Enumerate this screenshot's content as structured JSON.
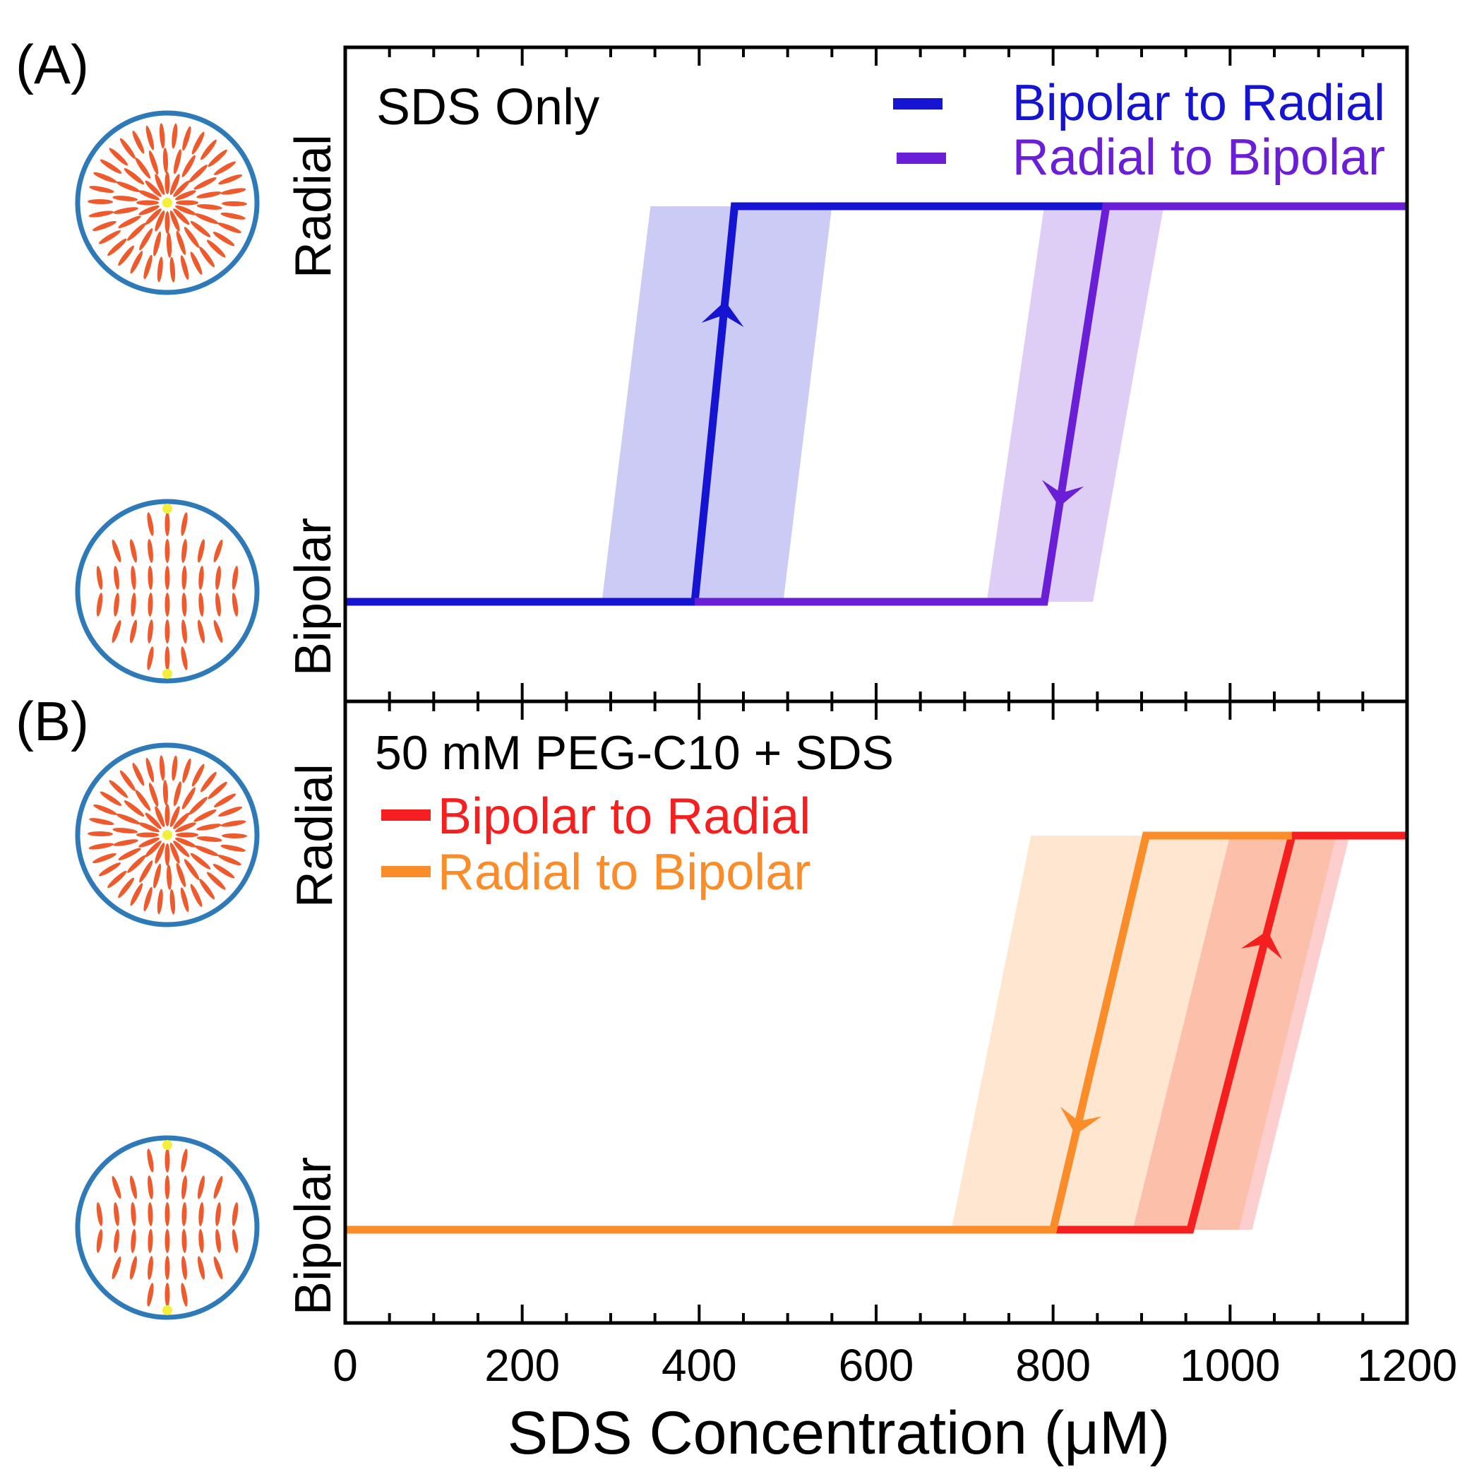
{
  "x_axis": {
    "label": "SDS Concentration (μM)",
    "ticks": [
      "0",
      "200",
      "400",
      "600",
      "800",
      "1000",
      "1200"
    ]
  },
  "y_states": {
    "top": "Radial",
    "bottom": "Bipolar"
  },
  "colors": {
    "blue": "#1414d2",
    "purple": "#6a1ed6",
    "red": "#f51f1f",
    "orange": "#fb8c2a",
    "droplet_border": "#2e7ab8",
    "molecule": "#ee5a2c",
    "defect": "#f4ef3a"
  },
  "chart_data": [
    {
      "type": "line",
      "panel_label": "(A)",
      "annotation": "SDS Only",
      "xlabel": "SDS Concentration (μM)",
      "xlim": [
        0,
        1200
      ],
      "ylim": [
        "Bipolar",
        "Radial"
      ],
      "legend_position": "top-right",
      "series": [
        {
          "name": "Bipolar to Radial",
          "color": "#1414d2",
          "direction": "up",
          "points": [
            [
              0,
              "Bipolar"
            ],
            [
              395,
              "Bipolar"
            ],
            [
              440,
              "Radial"
            ],
            [
              1200,
              "Radial"
            ]
          ],
          "uncertainty_band": {
            "at_bipolar": [
              290,
              495
            ],
            "at_radial": [
              345,
              550
            ]
          }
        },
        {
          "name": "Radial to Bipolar",
          "color": "#6a1ed6",
          "direction": "down",
          "points": [
            [
              395,
              "Bipolar"
            ],
            [
              790,
              "Bipolar"
            ],
            [
              860,
              "Radial"
            ],
            [
              1200,
              "Radial"
            ]
          ],
          "uncertainty_band": {
            "at_bipolar": [
              725,
              845
            ],
            "at_radial": [
              790,
              925
            ]
          }
        }
      ]
    },
    {
      "type": "line",
      "panel_label": "(B)",
      "annotation": "50 mM PEG-C10 + SDS",
      "xlabel": "SDS Concentration (μM)",
      "xlim": [
        0,
        1200
      ],
      "ylim": [
        "Bipolar",
        "Radial"
      ],
      "legend_position": "top-left",
      "series": [
        {
          "name": "Bipolar to Radial",
          "color": "#f51f1f",
          "direction": "up",
          "points": [
            [
              800,
              "Bipolar"
            ],
            [
              955,
              "Bipolar"
            ],
            [
              1070,
              "Radial"
            ],
            [
              1200,
              "Radial"
            ]
          ],
          "uncertainty_band": {
            "at_bipolar": [
              890,
              1025
            ],
            "at_radial": [
              1000,
              1135
            ]
          }
        },
        {
          "name": "Radial to Bipolar",
          "color": "#fb8c2a",
          "direction": "down",
          "points": [
            [
              0,
              "Bipolar"
            ],
            [
              800,
              "Bipolar"
            ],
            [
              905,
              "Radial"
            ],
            [
              1070,
              "Radial"
            ]
          ],
          "uncertainty_band": {
            "at_bipolar": [
              685,
              1010
            ],
            "at_radial": [
              775,
              1120
            ]
          }
        }
      ]
    }
  ]
}
